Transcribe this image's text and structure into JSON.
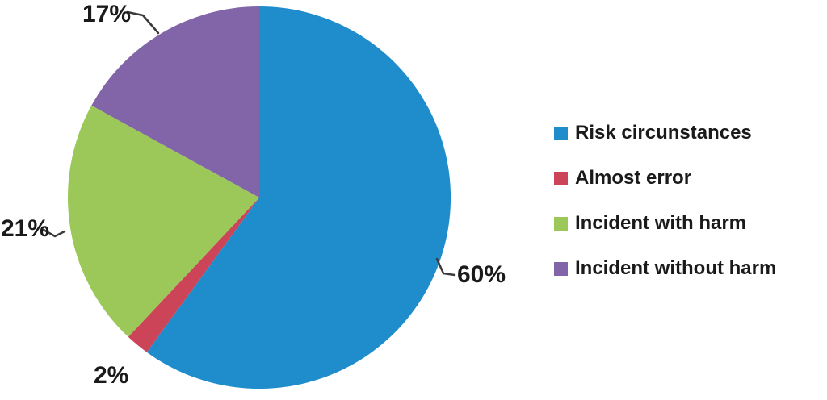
{
  "figure": {
    "background": "#FFFFFF"
  },
  "chart_data": {
    "type": "pie",
    "title": "",
    "categories": [
      "Risk circunstances",
      "Almost error",
      "Incident with harm",
      "Incident without harm"
    ],
    "values": [
      60,
      2,
      21,
      17
    ],
    "unit": "%",
    "colors": [
      "#1F8DCC",
      "#CB4457",
      "#9BC859",
      "#8165A8"
    ],
    "slice_labels": [
      "60%",
      "2%",
      "21%",
      "17%"
    ],
    "start_angle_deg": 0,
    "direction": "clockwise",
    "legend_position": "right",
    "text_color": "#1A1A1A",
    "leader_line_color": "#3A3A3A"
  }
}
